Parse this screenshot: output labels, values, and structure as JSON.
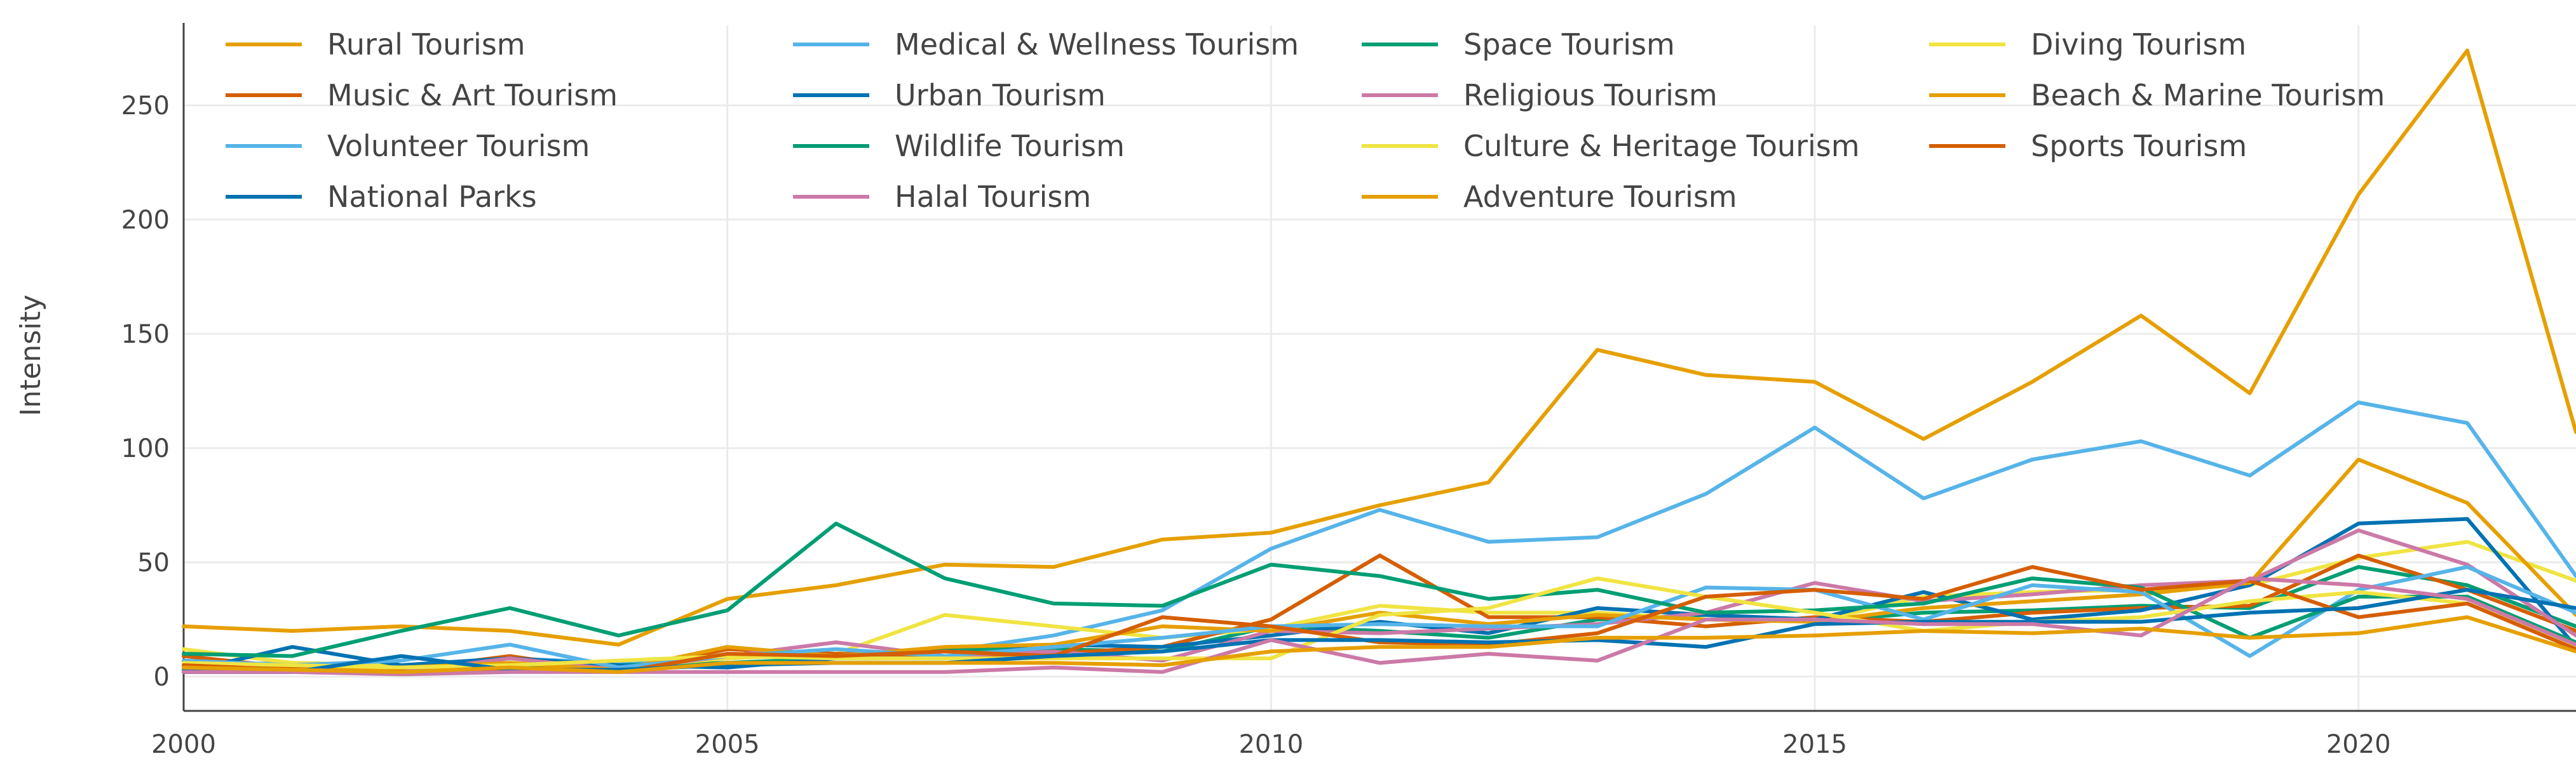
{
  "chart_data": {
    "type": "line",
    "title": "",
    "xlabel": "",
    "ylabel": "Intensity",
    "xlim": [
      2000,
      2022
    ],
    "ylim": [
      -15,
      285
    ],
    "x_ticks": [
      2000,
      2005,
      2010,
      2015,
      2020
    ],
    "y_ticks": [
      0,
      50,
      100,
      150,
      200,
      250
    ],
    "grid": true,
    "legend_position": "top-left",
    "x": [
      2000,
      2001,
      2002,
      2003,
      2004,
      2005,
      2006,
      2007,
      2008,
      2009,
      2010,
      2011,
      2012,
      2013,
      2014,
      2015,
      2016,
      2017,
      2018,
      2019,
      2020,
      2021,
      2022
    ],
    "series": [
      {
        "name": "Rural Tourism",
        "color": "#E69F00",
        "values": [
          22,
          20,
          22,
          20,
          14,
          34,
          40,
          49,
          48,
          60,
          63,
          75,
          85,
          143,
          132,
          129,
          104,
          129,
          158,
          124,
          211,
          274,
          107
        ]
      },
      {
        "name": "Medical & Wellness Tourism",
        "color": "#56B4E9",
        "values": [
          5,
          6,
          5,
          8,
          6,
          8,
          10,
          11,
          18,
          29,
          56,
          73,
          59,
          61,
          80,
          109,
          78,
          95,
          103,
          88,
          120,
          111,
          44
        ]
      },
      {
        "name": "Space Tourism",
        "color": "#009E73",
        "values": [
          3,
          4,
          2,
          4,
          5,
          6,
          8,
          12,
          12,
          11,
          22,
          20,
          17,
          25,
          27,
          24,
          28,
          29,
          31,
          30,
          48,
          40,
          22
        ]
      },
      {
        "name": "Diving Tourism",
        "color": "#F0E442",
        "values": [
          12,
          6,
          5,
          6,
          4,
          8,
          10,
          27,
          22,
          17,
          21,
          31,
          28,
          28,
          25,
          24,
          35,
          37,
          38,
          40,
          52,
          59,
          42
        ]
      },
      {
        "name": "Music & Art Tourism",
        "color": "#D55E00",
        "values": [
          9,
          4,
          3,
          9,
          2,
          12,
          10,
          9,
          10,
          13,
          25,
          53,
          26,
          26,
          22,
          26,
          24,
          28,
          30,
          31,
          53,
          38,
          20
        ]
      },
      {
        "name": "Urban Tourism",
        "color": "#0072B2",
        "values": [
          2,
          13,
          5,
          8,
          5,
          4,
          8,
          8,
          14,
          13,
          18,
          24,
          19,
          30,
          27,
          25,
          37,
          25,
          29,
          40,
          67,
          69,
          13
        ]
      },
      {
        "name": "Religious Tourism",
        "color": "#CC79A7",
        "values": [
          4,
          3,
          2,
          8,
          3,
          9,
          15,
          9,
          11,
          7,
          20,
          19,
          21,
          23,
          28,
          41,
          33,
          36,
          40,
          42,
          64,
          49,
          18
        ]
      },
      {
        "name": "Beach & Marine Tourism",
        "color": "#E69F00",
        "values": [
          5,
          3,
          4,
          6,
          3,
          13,
          9,
          13,
          14,
          22,
          20,
          28,
          23,
          27,
          25,
          24,
          30,
          33,
          36,
          41,
          95,
          76,
          27
        ]
      },
      {
        "name": "Volunteer Tourism",
        "color": "#56B4E9",
        "values": [
          7,
          5,
          7,
          14,
          4,
          9,
          12,
          9,
          13,
          17,
          22,
          23,
          22,
          22,
          39,
          38,
          25,
          40,
          37,
          9,
          38,
          48,
          28
        ]
      },
      {
        "name": "Wildlife Tourism",
        "color": "#009E73",
        "values": [
          10,
          9,
          20,
          30,
          18,
          29,
          67,
          43,
          32,
          31,
          49,
          44,
          34,
          38,
          28,
          29,
          32,
          43,
          39,
          17,
          35,
          35,
          15
        ]
      },
      {
        "name": "Culture & Heritage Tourism",
        "color": "#F0E442",
        "values": [
          6,
          5,
          4,
          5,
          7,
          9,
          8,
          8,
          8,
          8,
          8,
          27,
          30,
          43,
          35,
          28,
          20,
          24,
          26,
          33,
          37,
          32,
          13
        ]
      },
      {
        "name": "Sports Tourism",
        "color": "#D55E00",
        "values": [
          5,
          3,
          2,
          3,
          2,
          10,
          9,
          11,
          9,
          26,
          22,
          15,
          14,
          19,
          35,
          38,
          34,
          48,
          38,
          42,
          26,
          32,
          12
        ]
      },
      {
        "name": "National Parks",
        "color": "#0072B2",
        "values": [
          2,
          2,
          9,
          3,
          3,
          5,
          6,
          6,
          9,
          11,
          16,
          16,
          15,
          16,
          13,
          23,
          24,
          24,
          24,
          28,
          30,
          38,
          30
        ]
      },
      {
        "name": "Halal Tourism",
        "color": "#CC79A7",
        "values": [
          2,
          2,
          1,
          2,
          2,
          2,
          2,
          2,
          4,
          2,
          16,
          6,
          10,
          7,
          25,
          25,
          23,
          23,
          18,
          43,
          40,
          34,
          14
        ]
      },
      {
        "name": "Adventure Tourism",
        "color": "#E69F00",
        "values": [
          4,
          3,
          2,
          4,
          2,
          6,
          6,
          6,
          6,
          5,
          11,
          13,
          13,
          17,
          17,
          18,
          20,
          19,
          21,
          17,
          19,
          26,
          11
        ]
      }
    ]
  }
}
